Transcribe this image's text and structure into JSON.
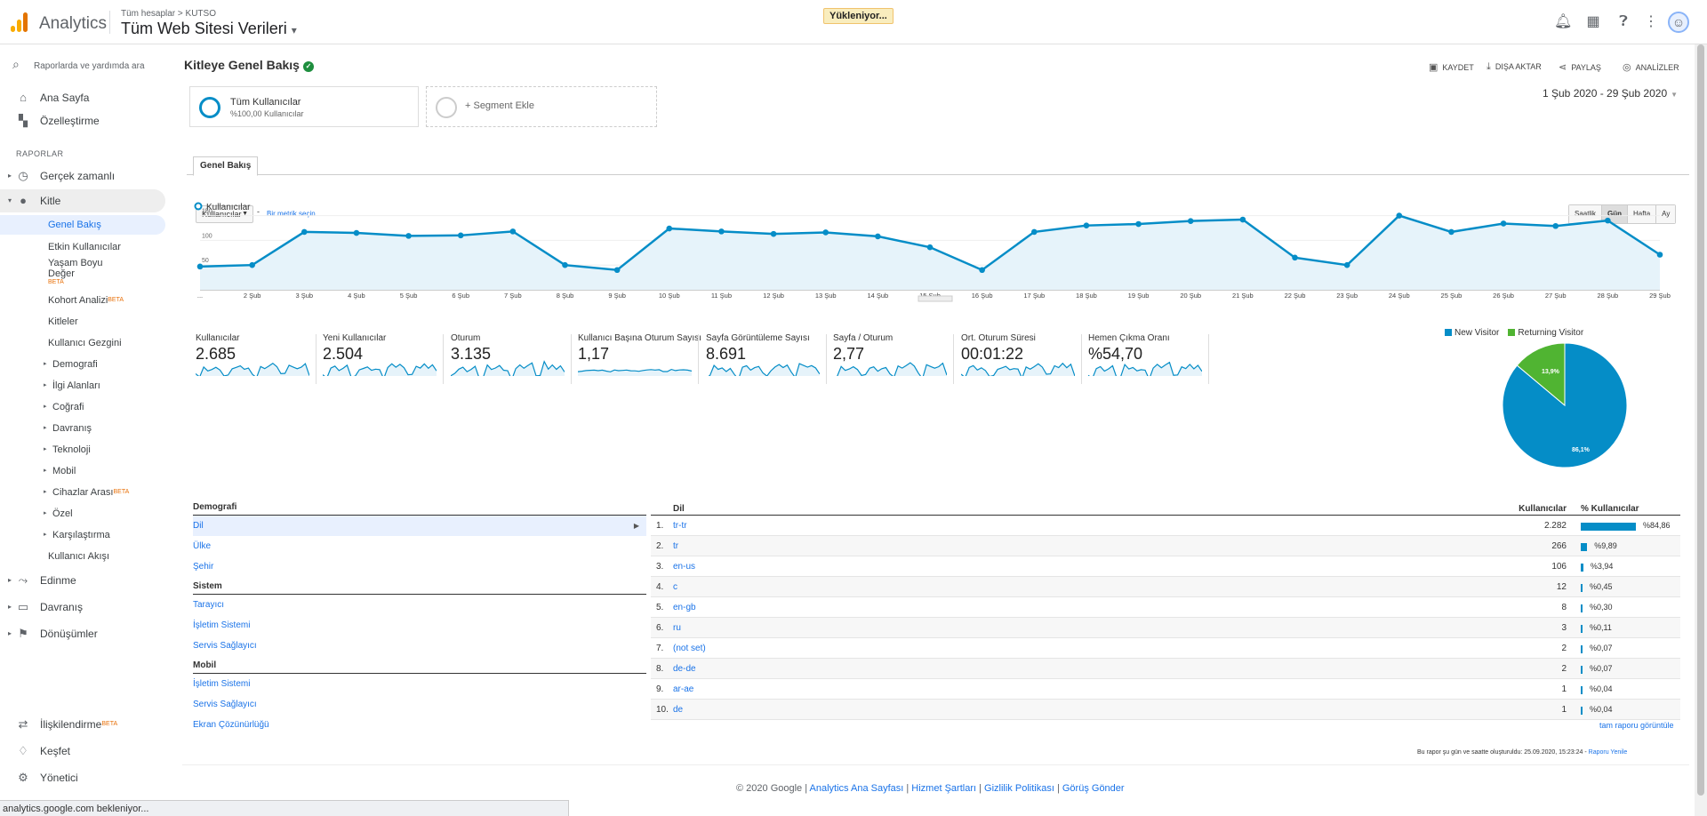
{
  "header": {
    "app_title": "Analytics",
    "account_path": "Tüm hesaplar > KUTSO",
    "view_name": "Tüm Web Sitesi Verileri",
    "loading_text": "Yükleniyor...",
    "icons": [
      "bell-icon",
      "apps-grid-icon",
      "help-icon",
      "more-vert-icon"
    ]
  },
  "sidebar": {
    "search_placeholder": "Raporlarda ve yardımda ara",
    "home": "Ana Sayfa",
    "customization": "Özelleştirme",
    "reports_label": "RAPORLAR",
    "realtime": "Gerçek zamanlı",
    "audience": "Kitle",
    "audience_items": [
      "Genel Bakış",
      "Etkin Kullanıcılar",
      "Yaşam Boyu",
      "Değer",
      "Kohort Analizi",
      "Kitleler",
      "Kullanıcı Gezgini"
    ],
    "beta": "BETA",
    "audience_groups": [
      "Demografi",
      "İlgi Alanları",
      "Coğrafi",
      "Davranış",
      "Teknoloji",
      "Mobil",
      "Cihazlar Arası",
      "Özel",
      "Karşılaştırma"
    ],
    "user_flow": "Kullanıcı Akışı",
    "acquisition": "Edinme",
    "behavior": "Davranış",
    "conversions": "Dönüşümler",
    "attribution": "İlişkilendirme",
    "discover": "Keşfet",
    "admin": "Yönetici"
  },
  "page": {
    "title": "Kitleye Genel Bakış",
    "toolbar": {
      "save": "KAYDET",
      "export": "DIŞA AKTAR",
      "share": "PAYLAŞ",
      "insights": "ANALİZLER"
    },
    "segment_all": "Tüm Kullanıcılar",
    "segment_all_sub": "%100,00 Kullanıcılar",
    "segment_add": "+ Segment Ekle",
    "date_range": "1 Şub 2020 - 29 Şub 2020",
    "tab": "Genel Bakış",
    "metric_select": "Kullanıcılar",
    "vs": "-",
    "pick_metric": "Bir metrik seçin",
    "periods": [
      "Saatlik",
      "Gün",
      "Hafta",
      "Ay"
    ],
    "active_period": "Gün"
  },
  "chart_data": {
    "type": "line",
    "series": [
      {
        "name": "Kullanıcılar",
        "values": [
          47,
          50,
          117,
          115,
          109,
          110,
          118,
          50,
          40,
          124,
          118,
          113,
          116,
          108,
          86,
          40,
          117,
          130,
          133,
          139,
          142,
          65,
          50,
          150,
          117,
          134,
          129,
          140,
          71
        ]
      }
    ],
    "x": [
      "",
      "2 Şub",
      "3 Şub",
      "4 Şub",
      "5 Şub",
      "6 Şub",
      "7 Şub",
      "8 Şub",
      "9 Şub",
      "10 Şub",
      "11 Şub",
      "12 Şub",
      "13 Şub",
      "14 Şub",
      "15 Şub",
      "16 Şub",
      "17 Şub",
      "18 Şub",
      "19 Şub",
      "20 Şub",
      "21 Şub",
      "22 Şub",
      "23 Şub",
      "24 Şub",
      "25 Şub",
      "26 Şub",
      "27 Şub",
      "28 Şub",
      "29 Şub"
    ],
    "first_tick_label": "...",
    "yticks": [
      "150",
      "100",
      "50"
    ],
    "ylim": [
      0,
      160
    ],
    "color": "#058dc7"
  },
  "kpis": [
    {
      "label": "Kullanıcılar",
      "value": "2.685"
    },
    {
      "label": "Yeni Kullanıcılar",
      "value": "2.504"
    },
    {
      "label": "Oturum",
      "value": "3.135"
    },
    {
      "label": "Kullanıcı Başına Oturum Sayısı",
      "value": "1,17"
    },
    {
      "label": "Sayfa Görüntüleme Sayısı",
      "value": "8.691"
    },
    {
      "label": "Sayfa / Oturum",
      "value": "2,77"
    },
    {
      "label": "Ort. Oturum Süresi",
      "value": "00:01:22"
    },
    {
      "label": "Hemen Çıkma Oranı",
      "value": "%54,70"
    }
  ],
  "pie": {
    "new_label": "New Visitor",
    "returning_label": "Returning Visitor",
    "new_pct": 86.1,
    "returning_pct": 13.9,
    "new_text": "86,1%",
    "returning_text": "13,9%",
    "new_color": "#058dc7",
    "returning_color": "#50b432"
  },
  "demographics": {
    "sections": [
      {
        "title": "Demografi",
        "items": [
          "Dil",
          "Ülke",
          "Şehir"
        ]
      },
      {
        "title": "Sistem",
        "items": [
          "Tarayıcı",
          "İşletim Sistemi",
          "Servis Sağlayıcı"
        ]
      },
      {
        "title": "Mobil",
        "items": [
          "İşletim Sistemi",
          "Servis Sağlayıcı",
          "Ekran Çözünürlüğü"
        ]
      }
    ]
  },
  "language_table": {
    "title": "Dil",
    "col_users": "Kullanıcılar",
    "col_pct": "% Kullanıcılar",
    "rows": [
      {
        "n": "1.",
        "name": "tr-tr",
        "users": "2.282",
        "pct": "%84,86",
        "frac": 0.8486
      },
      {
        "n": "2.",
        "name": "tr",
        "users": "266",
        "pct": "%9,89",
        "frac": 0.0989
      },
      {
        "n": "3.",
        "name": "en-us",
        "users": "106",
        "pct": "%3,94",
        "frac": 0.0394
      },
      {
        "n": "4.",
        "name": "c",
        "users": "12",
        "pct": "%0,45",
        "frac": 0.0045
      },
      {
        "n": "5.",
        "name": "en-gb",
        "users": "8",
        "pct": "%0,30",
        "frac": 0.003
      },
      {
        "n": "6.",
        "name": "ru",
        "users": "3",
        "pct": "%0,11",
        "frac": 0.0011
      },
      {
        "n": "7.",
        "name": "(not set)",
        "users": "2",
        "pct": "%0,07",
        "frac": 0.0007
      },
      {
        "n": "8.",
        "name": "de-de",
        "users": "2",
        "pct": "%0,07",
        "frac": 0.0007
      },
      {
        "n": "9.",
        "name": "ar-ae",
        "users": "1",
        "pct": "%0,04",
        "frac": 0.0004
      },
      {
        "n": "10.",
        "name": "de",
        "users": "1",
        "pct": "%0,04",
        "frac": 0.0004
      }
    ],
    "full_report": "tam raporu görüntüle"
  },
  "generated_text": "Bu rapor şu gün ve saatte oluşturuldu: 25.09.2020, 15:23:24 -",
  "refresh_text": "Raporu Yenile",
  "footer": {
    "copyright": "© 2020 Google |",
    "links": [
      "Analytics Ana Sayfası",
      "Hizmet Şartları",
      "Gizlilik Politikası",
      "Görüş Gönder"
    ]
  },
  "status_text": "analytics.google.com bekleniyor..."
}
